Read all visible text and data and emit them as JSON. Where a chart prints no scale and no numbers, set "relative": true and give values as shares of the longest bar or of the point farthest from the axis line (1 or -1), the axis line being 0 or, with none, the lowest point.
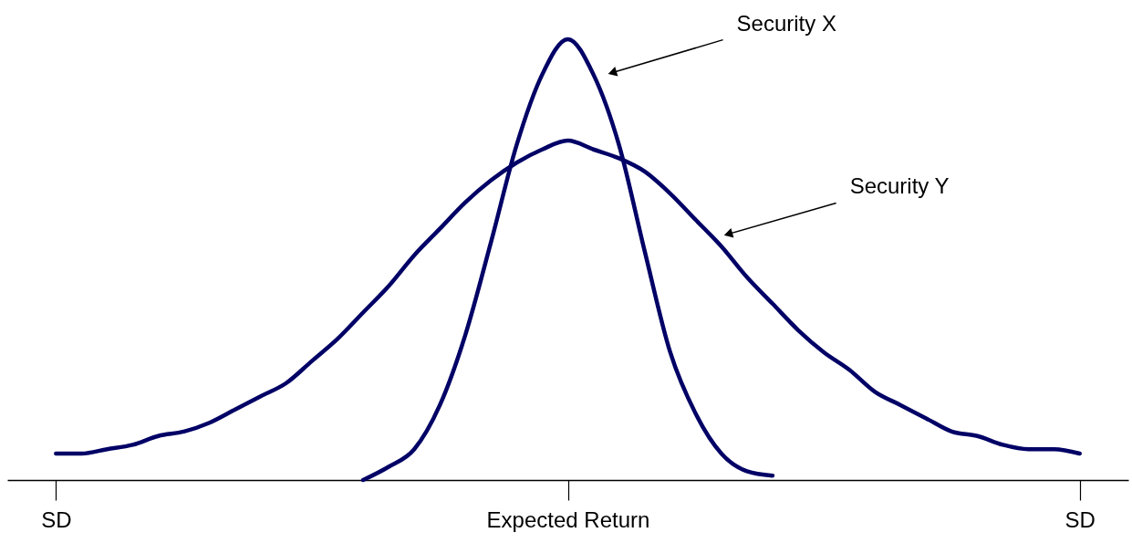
{
  "chart_data": {
    "type": "line",
    "relative": true,
    "legend": false,
    "marker": "none",
    "line_style": "solid",
    "annotations": [
      "Security X",
      "Security Y"
    ],
    "categories": [
      "SD",
      null,
      null,
      null,
      null,
      null,
      null,
      null,
      null,
      null,
      null,
      null,
      null,
      null,
      null,
      null,
      null,
      null,
      null,
      null,
      "Expected Return",
      null,
      null,
      null,
      null,
      null,
      null,
      null,
      null,
      null,
      null,
      null,
      null,
      null,
      null,
      null,
      null,
      null,
      null,
      null,
      "SD"
    ],
    "series": [
      {
        "color": "#000066",
        "values": [
          null,
          null,
          null,
          null,
          null,
          null,
          null,
          null,
          null,
          null,
          null,
          null,
          0.0,
          0.03,
          0.07,
          0.17,
          0.33,
          0.54,
          0.76,
          0.92,
          1.0,
          0.92,
          0.76,
          0.52,
          0.29,
          0.15,
          0.06,
          0.02,
          0.01,
          null,
          null,
          null,
          null,
          null,
          null,
          null,
          null,
          null,
          null,
          null,
          null
        ]
      },
      {
        "color": "#000066",
        "values": [
          0.06,
          0.06,
          0.07,
          0.08,
          0.1,
          0.11,
          0.13,
          0.16,
          0.19,
          0.22,
          0.27,
          0.32,
          0.38,
          0.44,
          0.51,
          0.57,
          0.63,
          0.68,
          0.72,
          0.75,
          0.77,
          0.75,
          0.73,
          0.7,
          0.65,
          0.59,
          0.53,
          0.46,
          0.4,
          0.34,
          0.29,
          0.25,
          0.2,
          0.17,
          0.14,
          0.11,
          0.1,
          0.08,
          0.07,
          0.07,
          0.06
        ]
      }
    ]
  }
}
